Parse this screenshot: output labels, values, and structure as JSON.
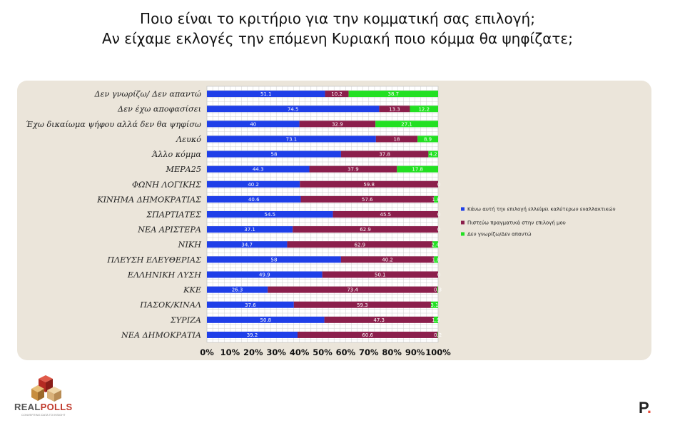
{
  "title_line1": "Ποιο είναι το κριτήριο για την κομματική σας επιλογή;",
  "title_line2": "Αν είχαμε εκλογές την επόμενη Κυριακή ποιο κόμμα θα ψηφίζατε;",
  "chart_data": {
    "type": "bar",
    "orientation": "horizontal",
    "stacked": "100%",
    "categories": [
      "Δεν γνωρίζω/ Δεν απαντώ",
      "Δεν έχω αποφασίσει",
      "Έχω δικαίωμα ψήφου αλλά δεν θα ψηφίσω",
      "Λευκό",
      "Άλλο κόμμα",
      "ΜΕΡΑ25",
      "ΦΩΝΗ ΛΟΓΙΚΗΣ",
      "ΚΙΝΗΜΑ ΔΗΜΟΚΡΑΤΙΑΣ",
      "ΣΠΑΡΤΙΑΤΕΣ",
      "ΝΕΑ ΑΡΙΣΤΕΡΑ",
      "ΝΙΚΗ",
      "ΠΛΕΥΣΗ ΕΛΕΥΘΕΡΙΑΣ",
      "ΕΛΛΗΝΙΚΗ ΛΥΣΗ",
      "ΚΚΕ",
      "ΠΑΣΟΚ/ΚΙΝΑΛ",
      "ΣΥΡΙΖΑ",
      "ΝΕΑ ΔΗΜΟΚΡΑΤΙΑ"
    ],
    "series": [
      {
        "name": "Κάνω αυτή την επιλογή ελλείψει καλύτερων εναλλακτικών",
        "color": "#1f3fe8",
        "values": [
          51.1,
          74.5,
          40,
          73.1,
          58,
          44.3,
          40.2,
          40.6,
          54.5,
          37.1,
          34.7,
          58,
          49.9,
          26.3,
          37.6,
          50.8,
          39.2
        ]
      },
      {
        "name": "Πιστεύω πραγματικά στην επιλογή μου",
        "color": "#8b1f4c",
        "values": [
          10.2,
          13.3,
          32.9,
          18,
          37.8,
          37.9,
          59.8,
          57.6,
          45.5,
          62.9,
          62.9,
          40.2,
          50.1,
          73.4,
          59.3,
          47.3,
          60.6
        ]
      },
      {
        "name": "Δεν γνωρίζω/Δεν απαντώ",
        "color": "#22e022",
        "values": [
          38.7,
          12.2,
          27.1,
          8.9,
          4.2,
          17.8,
          0,
          1.8,
          0,
          0,
          2.4,
          1.8,
          0,
          0.3,
          3.1,
          1.9,
          0.2
        ]
      }
    ],
    "labels": [
      [
        "51.1",
        "10.2",
        "38.7"
      ],
      [
        "74.5",
        "13.3",
        "12.2"
      ],
      [
        "40",
        "32.9",
        "27.1"
      ],
      [
        "73.1",
        "18",
        "8.9"
      ],
      [
        "58",
        "37.8",
        "4.2"
      ],
      [
        "44.3",
        "37.9",
        "17.8"
      ],
      [
        "40.2",
        "59.8",
        "0"
      ],
      [
        "40.6",
        "57.6",
        "1.8"
      ],
      [
        "54.5",
        "45.5",
        "0"
      ],
      [
        "37.1",
        "62.9",
        "0"
      ],
      [
        "34.7",
        "62.9",
        "2.4"
      ],
      [
        "58",
        "40.2",
        "1.8"
      ],
      [
        "49.9",
        "50.1",
        "0"
      ],
      [
        "26.3",
        "73.4",
        "0.3"
      ],
      [
        "37.6",
        "59.3",
        "3.1"
      ],
      [
        "50.8",
        "47.3",
        "1.9"
      ],
      [
        "39.2",
        "60.6",
        "0.2"
      ]
    ],
    "xticks": [
      "0%",
      "10%",
      "20%",
      "30%",
      "40%",
      "50%",
      "60%",
      "70%",
      "80%",
      "90%",
      "100%"
    ],
    "xlim": [
      0,
      100
    ],
    "grid": true,
    "legend_position": "right"
  },
  "logo": {
    "brand_real": "REAL",
    "brand_polls": "POLLS",
    "tagline": "CONVERTING DATA TO INSIGHT"
  },
  "publisher_logo": {
    "letter": "P",
    "dot": "."
  }
}
